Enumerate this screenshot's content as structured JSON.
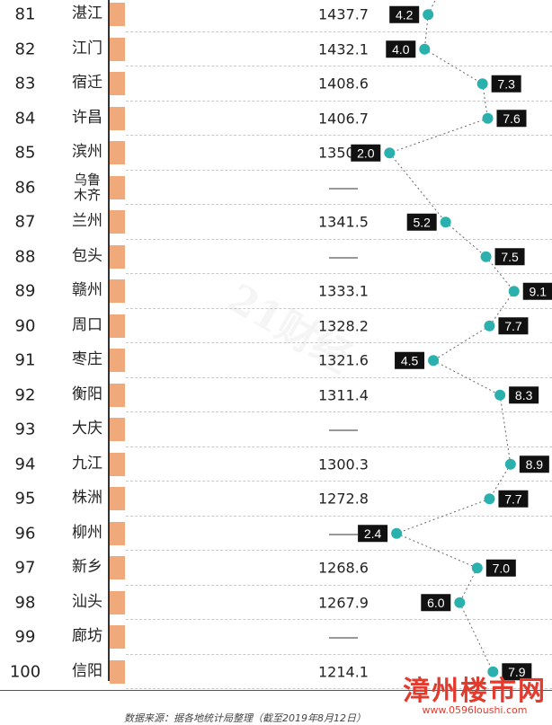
{
  "chart_data": {
    "type": "table",
    "series": [
      {
        "values": [
          1437.7,
          1432.1,
          1408.6,
          1406.7,
          1350.8,
          null,
          1341.5,
          null,
          1333.1,
          1328.2,
          1321.6,
          1311.4,
          null,
          1300.3,
          1272.8,
          null,
          1268.6,
          1267.9,
          null,
          1214.1
        ]
      },
      {
        "values": [
          4.2,
          4.0,
          7.3,
          7.6,
          2.0,
          null,
          5.2,
          7.5,
          9.1,
          7.7,
          4.5,
          8.3,
          null,
          8.9,
          7.7,
          2.4,
          7.0,
          6.0,
          null,
          7.9
        ]
      }
    ],
    "rows": [
      {
        "rank": "81",
        "city": "湛江",
        "value": "1437.7",
        "growth": 4.2,
        "growth_label": "4.2"
      },
      {
        "rank": "82",
        "city": "江门",
        "value": "1432.1",
        "growth": 4.0,
        "growth_label": "4.0"
      },
      {
        "rank": "83",
        "city": "宿迁",
        "value": "1408.6",
        "growth": 7.3,
        "growth_label": "7.3"
      },
      {
        "rank": "84",
        "city": "许昌",
        "value": "1406.7",
        "growth": 7.6,
        "growth_label": "7.6"
      },
      {
        "rank": "85",
        "city": "滨州",
        "value": "1350.8",
        "growth": 2.0,
        "growth_label": "2.0"
      },
      {
        "rank": "86",
        "city": "乌鲁\n木齐",
        "value": "",
        "growth": null,
        "growth_label": ""
      },
      {
        "rank": "87",
        "city": "兰州",
        "value": "1341.5",
        "growth": 5.2,
        "growth_label": "5.2"
      },
      {
        "rank": "88",
        "city": "包头",
        "value": "",
        "growth": 7.5,
        "growth_label": "7.5"
      },
      {
        "rank": "89",
        "city": "赣州",
        "value": "1333.1",
        "growth": 9.1,
        "growth_label": "9.1"
      },
      {
        "rank": "90",
        "city": "周口",
        "value": "1328.2",
        "growth": 7.7,
        "growth_label": "7.7"
      },
      {
        "rank": "91",
        "city": "枣庄",
        "value": "1321.6",
        "growth": 4.5,
        "growth_label": "4.5"
      },
      {
        "rank": "92",
        "city": "衡阳",
        "value": "1311.4",
        "growth": 8.3,
        "growth_label": "8.3"
      },
      {
        "rank": "93",
        "city": "大庆",
        "value": "",
        "growth": null,
        "growth_label": ""
      },
      {
        "rank": "94",
        "city": "九江",
        "value": "1300.3",
        "growth": 8.9,
        "growth_label": "8.9"
      },
      {
        "rank": "95",
        "city": "株洲",
        "value": "1272.8",
        "growth": 7.7,
        "growth_label": "7.7"
      },
      {
        "rank": "96",
        "city": "柳州",
        "value": "",
        "growth": 2.4,
        "growth_label": "2.4"
      },
      {
        "rank": "97",
        "city": "新乡",
        "value": "1268.6",
        "growth": 7.0,
        "growth_label": "7.0"
      },
      {
        "rank": "98",
        "city": "汕头",
        "value": "1267.9",
        "growth": 6.0,
        "growth_label": "6.0"
      },
      {
        "rank": "99",
        "city": "廊坊",
        "value": "",
        "growth": null,
        "growth_label": ""
      },
      {
        "rank": "100",
        "city": "信阳",
        "value": "1214.1",
        "growth": 7.9,
        "growth_label": "7.9"
      }
    ],
    "colors": {
      "bar": "#f0a97a",
      "marker": "#2ab1ad",
      "label_bg": "#111111",
      "label_text": "#ffffff"
    }
  },
  "source_note": "数据来源：据各地统计局整理（截至2019年8月12日）",
  "watermarks": {
    "brand": "21财经",
    "site_cn": "漳州楼市网",
    "site_url": "www.0596loushi.com"
  }
}
